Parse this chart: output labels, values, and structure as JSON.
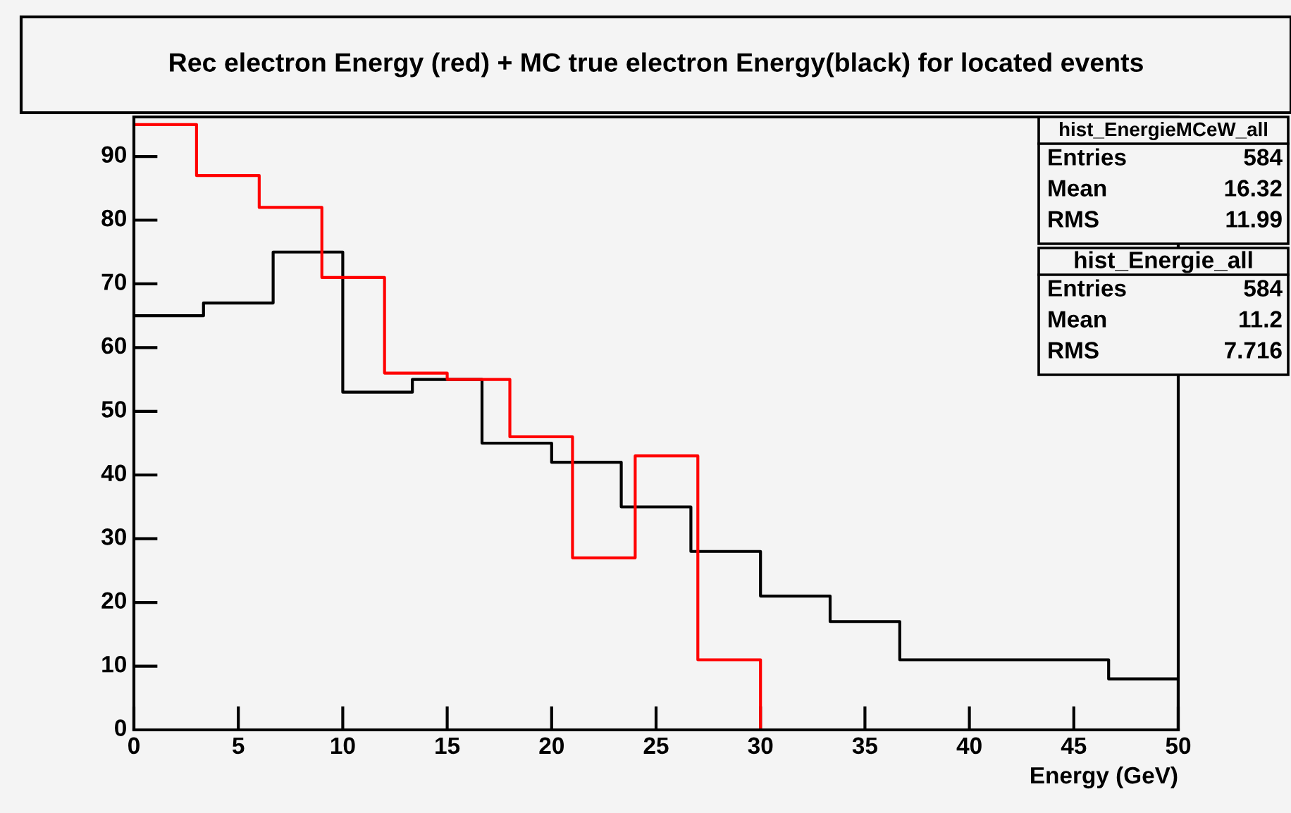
{
  "chart_data": {
    "type": "step",
    "title": "Rec electron Energy (red) + MC true electron Energy(black) for located events",
    "xlabel": "Energy (GeV)",
    "series": [
      {
        "color": "#000000",
        "x": [
          0,
          3.333,
          6.667,
          10,
          13.333,
          16.667,
          20,
          23.333,
          26.667,
          30,
          33.333,
          36.667,
          40,
          43.333,
          46.667,
          50
        ],
        "values": [
          65,
          67,
          75,
          53,
          55,
          45,
          42,
          35,
          28,
          21,
          17,
          11,
          11,
          11,
          8,
          0
        ]
      },
      {
        "color": "#ff0000",
        "x": [
          0,
          3,
          6,
          9,
          12,
          15,
          18,
          21,
          24,
          27,
          30
        ],
        "values": [
          95,
          87,
          82,
          71,
          56,
          55,
          46,
          27,
          43,
          11,
          0
        ]
      }
    ],
    "xlim": [
      0,
      50
    ],
    "ylim": [
      0,
      96.2
    ],
    "xticks": [
      0,
      5,
      10,
      15,
      20,
      25,
      30,
      35,
      40,
      45,
      50
    ],
    "yticks": [
      0,
      10,
      20,
      30,
      40,
      50,
      60,
      70,
      80,
      90
    ],
    "grid": false,
    "annotations": [
      "hist_EnergieMCeW_all",
      "Entries",
      "584",
      "Mean",
      "16.32",
      "RMS",
      "11.99",
      "hist_Energie_all",
      "Entries",
      "584",
      "Mean",
      "11.2",
      "RMS",
      "7.716"
    ]
  }
}
